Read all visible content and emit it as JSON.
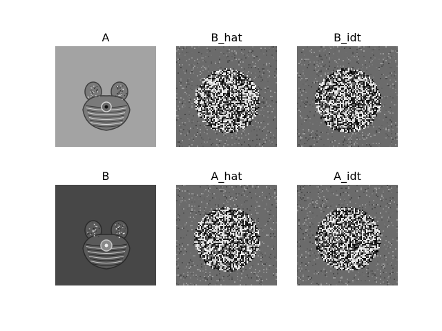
{
  "figure": {
    "panels": [
      {
        "title": "A",
        "kind": "mri",
        "background": "#a3a3a3"
      },
      {
        "title": "B_hat",
        "kind": "noise",
        "background": "#6b6b6b"
      },
      {
        "title": "B_idt",
        "kind": "noise",
        "background": "#6b6b6b"
      },
      {
        "title": "B",
        "kind": "mri",
        "background": "#474747"
      },
      {
        "title": "A_hat",
        "kind": "noise",
        "background": "#6b6b6b"
      },
      {
        "title": "A_idt",
        "kind": "noise",
        "background": "#6b6b6b"
      }
    ]
  }
}
